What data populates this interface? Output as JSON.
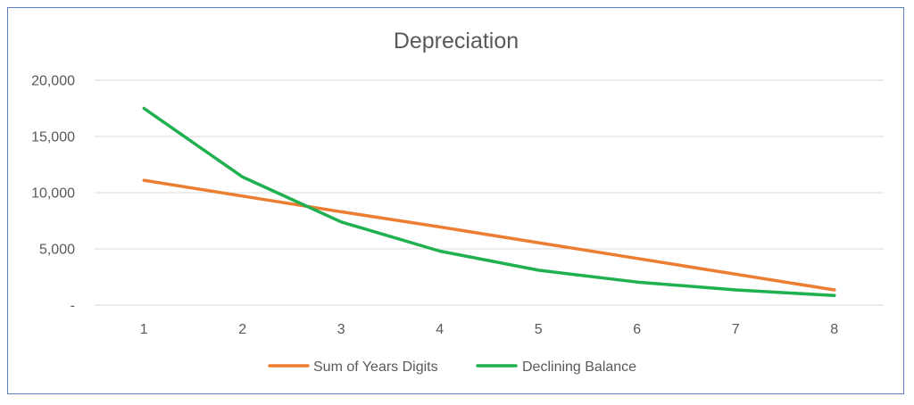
{
  "chart_data": {
    "type": "line",
    "title": "Depreciation",
    "xlabel": "",
    "ylabel": "",
    "x": [
      1,
      2,
      3,
      4,
      5,
      6,
      7,
      8
    ],
    "ylim": [
      0,
      20000
    ],
    "yticks": [
      {
        "value": 0,
        "label": "-"
      },
      {
        "value": 5000,
        "label": "5,000"
      },
      {
        "value": 10000,
        "label": "10,000"
      },
      {
        "value": 15000,
        "label": "15,000"
      },
      {
        "value": 20000,
        "label": "20,000"
      }
    ],
    "grid": true,
    "legend_position": "bottom",
    "series": [
      {
        "name": "Sum of Years Digits",
        "color": "#ed7d31",
        "values": [
          11100,
          9700,
          8300,
          6950,
          5550,
          4150,
          2750,
          1350
        ]
      },
      {
        "name": "Declining Balance",
        "color": "#1fb04f",
        "values": [
          17500,
          11400,
          7400,
          4800,
          3100,
          2050,
          1350,
          850
        ]
      }
    ]
  }
}
